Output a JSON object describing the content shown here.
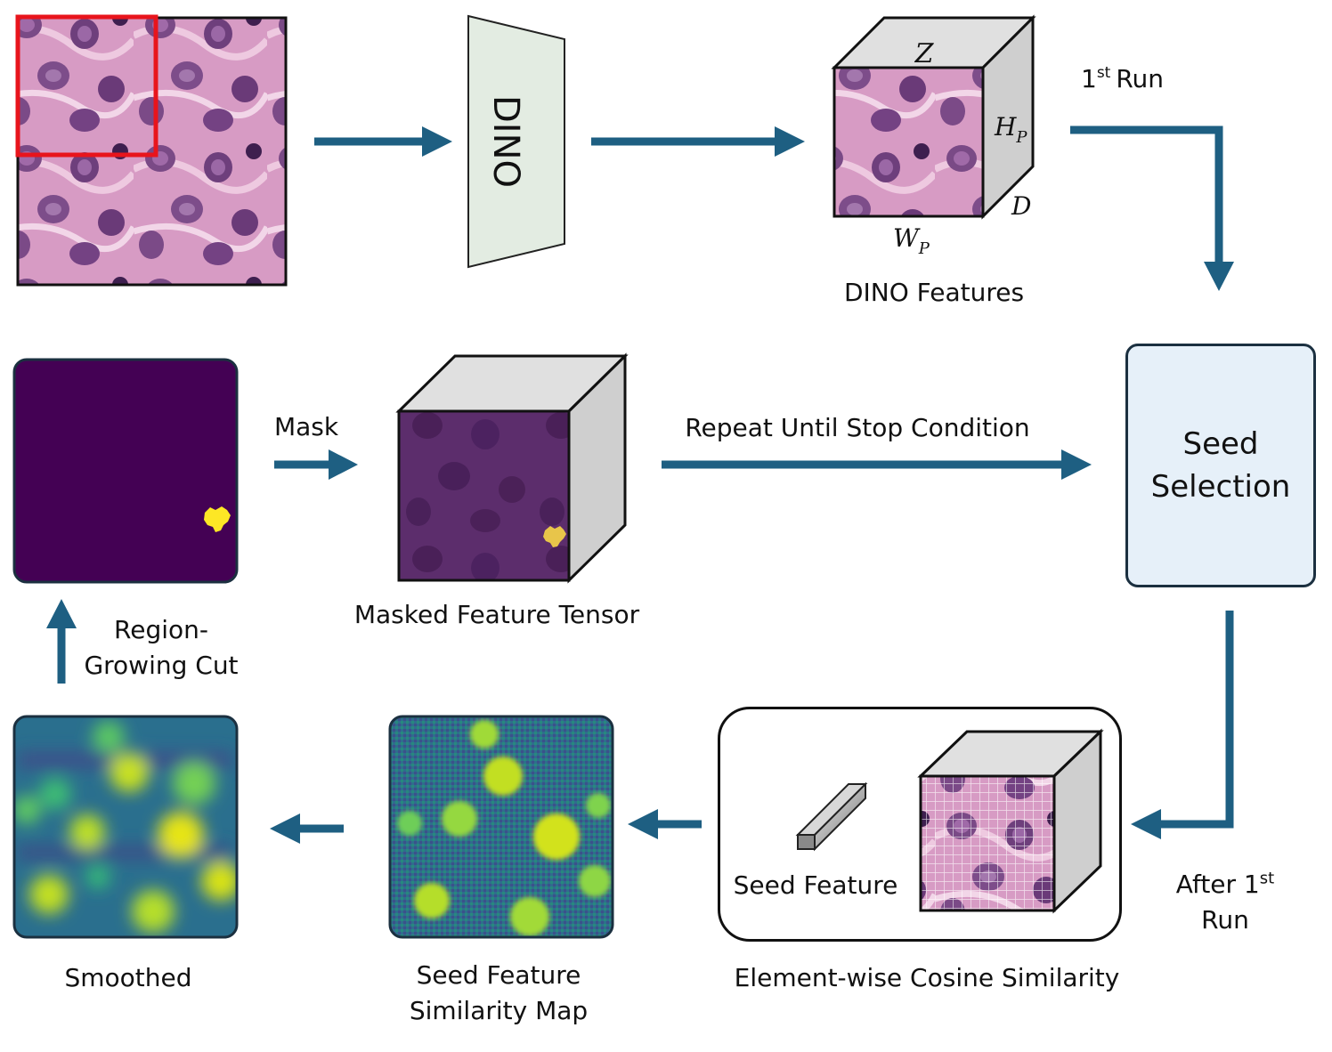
{
  "colors": {
    "arrow": "#1e5f82",
    "dino_block": "#e3ece2",
    "seed_box_fill": "#e6f0f9",
    "crop_box": "#e8141c",
    "mask_bg": "#440154",
    "mask_blob": "#fde725"
  },
  "input": {
    "image_name": "histology-input-image",
    "crop_name": "crop-region-box"
  },
  "dino": {
    "label": "DINO"
  },
  "features_cube": {
    "dim_z": "Z",
    "dim_h": "H",
    "dim_h_sub": "P",
    "dim_w": "W",
    "dim_w_sub": "P",
    "dim_d": "D",
    "caption": "DINO Features"
  },
  "first_run": {
    "number": "1",
    "sup": "st",
    "text": "Run"
  },
  "seed_selection": {
    "line1": "Seed",
    "line2": "Selection"
  },
  "after_first_run": {
    "line1_text": "After 1",
    "line1_sup": "st",
    "line2": "Run"
  },
  "cosine": {
    "seed_feature_label": "Seed Feature",
    "caption": "Element-wise Cosine Similarity"
  },
  "similarity_map": {
    "line1": "Seed Feature",
    "line2": "Similarity Map"
  },
  "smoothed": {
    "caption": "Smoothed"
  },
  "region_growing": {
    "line1": "Region-",
    "line2": "Growing Cut"
  },
  "mask_arrow": {
    "label": "Mask"
  },
  "masked_tensor": {
    "caption": "Masked Feature Tensor"
  },
  "repeat": {
    "label": "Repeat Until Stop Condition"
  }
}
